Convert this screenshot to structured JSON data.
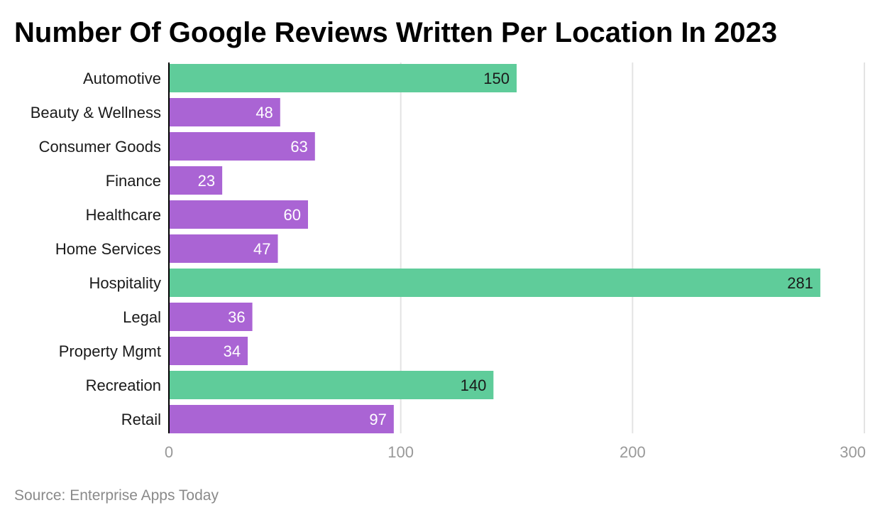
{
  "chart_data": {
    "type": "bar",
    "orientation": "horizontal",
    "title": "Number Of Google Reviews Written Per Location In 2023",
    "categories": [
      "Automotive",
      "Beauty & Wellness",
      "Consumer Goods",
      "Finance",
      "Healthcare",
      "Home Services",
      "Hospitality",
      "Legal",
      "Property Mgmt",
      "Recreation",
      "Retail"
    ],
    "values": [
      150,
      48,
      63,
      23,
      60,
      47,
      281,
      36,
      34,
      140,
      97
    ],
    "highlighted": [
      true,
      false,
      false,
      false,
      false,
      false,
      true,
      false,
      false,
      true,
      false
    ],
    "xlim": [
      0,
      300
    ],
    "xticks": [
      0,
      100,
      200,
      300
    ],
    "xlabel": "",
    "ylabel": "",
    "grid": true,
    "data_labels": true,
    "colors": {
      "highlight": "#5fcc9a",
      "default": "#aa64d4",
      "highlight_label": "#1a1a1a",
      "default_label": "#ffffff",
      "grid": "#e3e3e3",
      "axis": "#000000"
    }
  },
  "source": "Source: Enterprise Apps Today"
}
